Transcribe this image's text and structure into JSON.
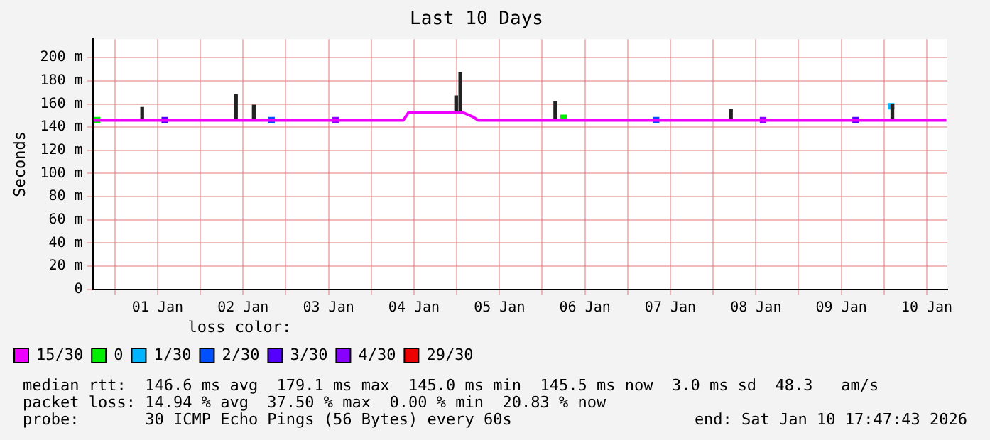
{
  "chart_data": {
    "type": "line",
    "title": "Last 10 Days",
    "ylabel": "Seconds",
    "legend_title": "loss color:",
    "legend": "bottom",
    "grid": true,
    "xlim": [
      "2025-12-31T17:47",
      "2026-01-10T17:47"
    ],
    "xticks": [
      {
        "value": "2026-01-01T00:00",
        "label": null
      },
      {
        "value": "2026-01-01T12:00",
        "label": "01 Jan"
      },
      {
        "value": "2026-01-02T00:00",
        "label": null
      },
      {
        "value": "2026-01-02T12:00",
        "label": "02 Jan"
      },
      {
        "value": "2026-01-03T00:00",
        "label": null
      },
      {
        "value": "2026-01-03T12:00",
        "label": "03 Jan"
      },
      {
        "value": "2026-01-04T00:00",
        "label": null
      },
      {
        "value": "2026-01-04T12:00",
        "label": "04 Jan"
      },
      {
        "value": "2026-01-05T00:00",
        "label": null
      },
      {
        "value": "2026-01-05T12:00",
        "label": "05 Jan"
      },
      {
        "value": "2026-01-06T00:00",
        "label": null
      },
      {
        "value": "2026-01-06T12:00",
        "label": "06 Jan"
      },
      {
        "value": "2026-01-07T00:00",
        "label": null
      },
      {
        "value": "2026-01-07T12:00",
        "label": "07 Jan"
      },
      {
        "value": "2026-01-08T00:00",
        "label": null
      },
      {
        "value": "2026-01-08T12:00",
        "label": "08 Jan"
      },
      {
        "value": "2026-01-09T00:00",
        "label": null
      },
      {
        "value": "2026-01-09T12:00",
        "label": "09 Jan"
      },
      {
        "value": "2026-01-10T00:00",
        "label": null
      },
      {
        "value": "2026-01-10T12:00",
        "label": "10 Jan"
      }
    ],
    "ylim": [
      0,
      216
    ],
    "yticks": [
      0,
      {
        "value": 20,
        "label": "20 m"
      },
      {
        "value": 40,
        "label": "40 m"
      },
      {
        "value": 60,
        "label": "60 m"
      },
      {
        "value": 80,
        "label": "80 m"
      },
      {
        "value": 100,
        "label": "100 m"
      },
      {
        "value": 120,
        "label": "120 m"
      },
      {
        "value": 140,
        "label": "140 m"
      },
      {
        "value": 160,
        "label": "160 m"
      },
      {
        "value": 180,
        "label": "180 m"
      },
      {
        "value": 200,
        "label": "200 m"
      }
    ],
    "series": [
      {
        "name": "15/30",
        "color": "#ee00ff",
        "x": [
          "2025-12-31T18:00",
          "2026-01-01T00:00",
          "2026-01-01T06:00",
          "2026-01-01T12:00",
          "2026-01-01T18:00",
          "2026-01-02T00:00",
          "2026-01-02T06:00",
          "2026-01-02T12:00",
          "2026-01-02T18:00",
          "2026-01-03T00:00",
          "2026-01-03T06:00",
          "2026-01-03T12:00",
          "2026-01-03T18:00",
          "2026-01-04T00:00",
          "2026-01-04T06:00",
          "2026-01-04T09:00",
          "2026-01-04T10:30",
          "2026-01-04T18:00",
          "2026-01-05T00:00",
          "2026-01-05T01:30",
          "2026-01-05T04:30",
          "2026-01-05T06:00",
          "2026-01-05T12:00",
          "2026-01-05T18:00",
          "2026-01-06T00:00",
          "2026-01-06T06:00",
          "2026-01-06T12:00",
          "2026-01-06T18:00",
          "2026-01-07T00:00",
          "2026-01-07T06:00",
          "2026-01-07T12:00",
          "2026-01-07T18:00",
          "2026-01-08T00:00",
          "2026-01-08T06:00",
          "2026-01-08T12:00",
          "2026-01-08T18:00",
          "2026-01-09T00:00",
          "2026-01-09T06:00",
          "2026-01-09T12:00",
          "2026-01-09T18:00",
          "2026-01-10T00:00",
          "2026-01-10T06:00",
          "2026-01-10T12:00",
          "2026-01-10T17:30"
        ],
        "values": [
          146,
          146,
          146,
          146,
          146,
          146,
          146,
          146,
          146,
          146,
          146,
          146,
          146,
          146,
          146,
          146,
          153,
          153,
          153,
          153,
          149,
          146,
          146,
          146,
          146,
          146,
          146,
          146,
          146,
          146,
          146,
          146,
          146,
          146,
          146,
          146,
          146,
          146,
          146,
          146,
          146,
          146,
          146,
          146
        ]
      },
      {
        "type": "bar",
        "color": "#222222",
        "x": [
          "2026-01-01T07:40",
          "2026-01-02T10:00",
          "2026-01-02T15:00",
          "2026-01-04T23:50",
          "2026-01-05T01:00",
          "2026-01-06T03:40",
          "2026-01-08T05:00",
          "2026-01-10T02:20"
        ],
        "base": [
          146,
          146,
          146,
          153,
          153,
          146,
          146,
          146
        ],
        "values": [
          11,
          22,
          13,
          14,
          34,
          16,
          9,
          14
        ]
      },
      {
        "name": "0",
        "type": "scatter",
        "marker": "square",
        "color": "#00ee00",
        "x": [
          "2025-12-31T19:00",
          "2026-01-06T06:00"
        ],
        "values": [
          146,
          148
        ]
      },
      {
        "name": "1/30",
        "type": "scatter",
        "marker": "square",
        "color": "#00b4ff",
        "x": [
          "2026-01-10T02:00"
        ],
        "values": [
          158
        ]
      },
      {
        "name": "2/30",
        "type": "scatter",
        "marker": "square",
        "color": "#0050ff",
        "x": [
          "2026-01-02T20:00",
          "2026-01-07T08:00"
        ],
        "values": [
          146,
          146
        ]
      },
      {
        "name": "3/30",
        "type": "scatter",
        "marker": "square",
        "color": "#5500ff",
        "x": [
          "2026-01-01T14:00",
          "2026-01-09T16:00"
        ],
        "values": [
          146,
          146
        ]
      },
      {
        "name": "4/30",
        "type": "scatter",
        "marker": "square",
        "color": "#8800ff",
        "x": [
          "2026-01-03T14:00",
          "2026-01-08T14:00"
        ],
        "values": [
          146,
          146
        ]
      },
      {
        "name": "29/30",
        "type": "scatter",
        "marker": "square",
        "color": "#ee0000"
      }
    ],
    "annotations": [
      "median rtt:  146.6 ms avg  179.1 ms max  145.0 ms min  145.5 ms now  3.0 ms sd  48.3   am/s",
      "packet loss: 14.94 % avg  37.50 % max  0.00 % min  20.83 % now",
      "probe:       30 ICMP Echo Pings (56 Bytes) every 60s",
      "end: Sat Jan 10 17:47:43 2026"
    ]
  }
}
